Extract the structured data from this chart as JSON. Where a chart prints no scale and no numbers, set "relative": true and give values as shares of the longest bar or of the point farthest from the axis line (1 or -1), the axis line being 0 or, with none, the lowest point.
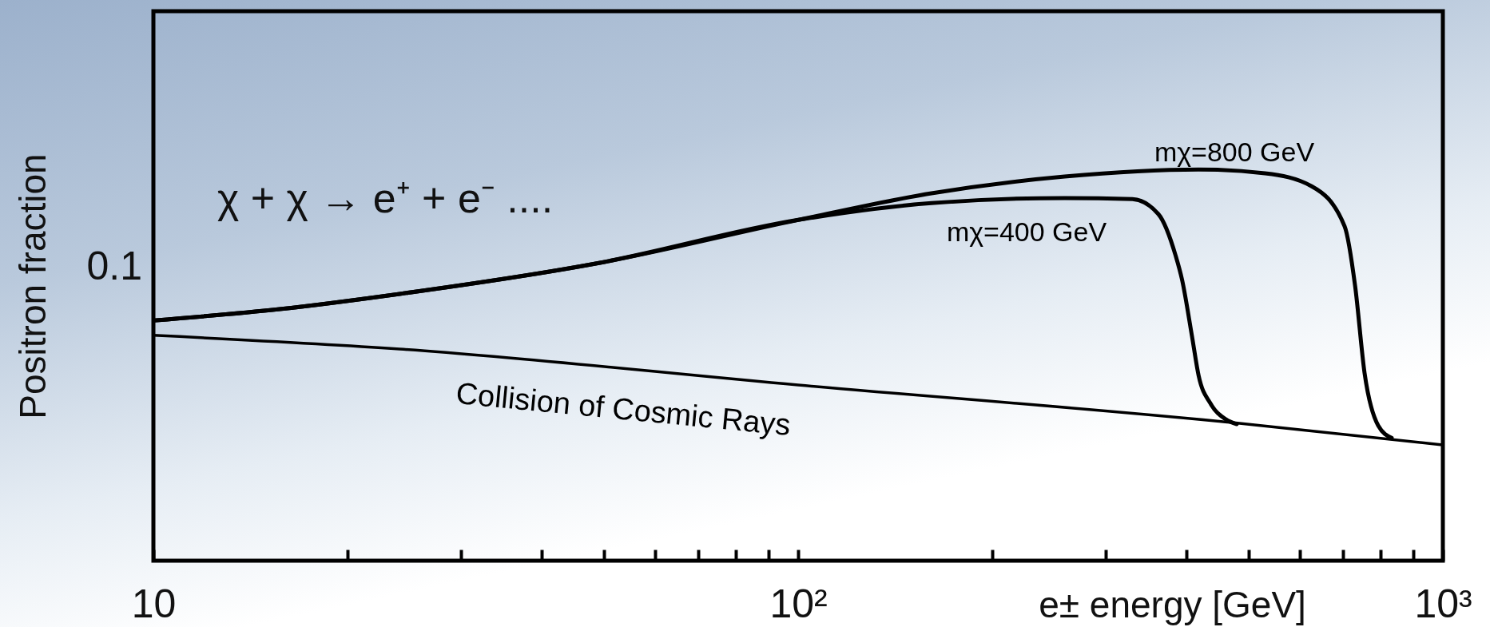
{
  "chart_data": {
    "type": "line",
    "xlabel": "e± energy [GeV]",
    "ylabel": "Positron fraction",
    "log": "x",
    "relative": true,
    "grid": false,
    "legend": false,
    "marker": "none",
    "line_style": "solid",
    "xlim": [
      10,
      1000
    ],
    "xticks": [
      10,
      {
        "value": 20,
        "label": null
      },
      {
        "value": 30,
        "label": null
      },
      {
        "value": 40,
        "label": null
      },
      {
        "value": 50,
        "label": null
      },
      {
        "value": 60,
        "label": null
      },
      {
        "value": 70,
        "label": null
      },
      {
        "value": 80,
        "label": null
      },
      {
        "value": 90,
        "label": null
      },
      {
        "value": 100,
        "label": "10²"
      },
      {
        "value": 200,
        "label": null
      },
      {
        "value": 300,
        "label": null
      },
      {
        "value": 400,
        "label": null
      },
      {
        "value": 500,
        "label": null
      },
      {
        "value": 600,
        "label": null
      },
      {
        "value": 700,
        "label": null
      },
      {
        "value": 800,
        "label": null
      },
      {
        "value": 900,
        "label": null
      },
      {
        "value": 1000,
        "label": "10³"
      }
    ],
    "series": [
      {
        "name": "mχ=800 GeV",
        "color": "#000000",
        "x": [
          10,
          15.7,
          24.1,
          49.1,
          100,
          161,
          259,
          418,
          530,
          626,
          704,
          731,
          756,
          794,
          833
        ],
        "values": [
          0.614,
          0.643,
          0.682,
          0.761,
          0.871,
          0.939,
          0.982,
          1,
          0.99,
          0.957,
          0.855,
          0.702,
          0.48,
          0.345,
          0.314
        ]
      },
      {
        "name": "mχ=400 GeV",
        "color": "#000000",
        "x": [
          10,
          15.7,
          24.1,
          49.1,
          100,
          161,
          259,
          330,
          362,
          385,
          394,
          408,
          418,
          436,
          461,
          479
        ],
        "values": [
          0.614,
          0.643,
          0.682,
          0.761,
          0.871,
          0.914,
          0.927,
          0.924,
          0.886,
          0.78,
          0.718,
          0.576,
          0.473,
          0.402,
          0.361,
          0.349
        ]
      },
      {
        "name": "Collision of Cosmic Rays",
        "color": "#000000",
        "x": [
          10,
          24.1,
          100,
          471,
          1000
        ],
        "values": [
          0.576,
          0.541,
          0.449,
          0.353,
          0.296
        ]
      }
    ],
    "annotations": [
      "χ + χ → e⁺ + e⁻ ....",
      "0.1"
    ]
  }
}
